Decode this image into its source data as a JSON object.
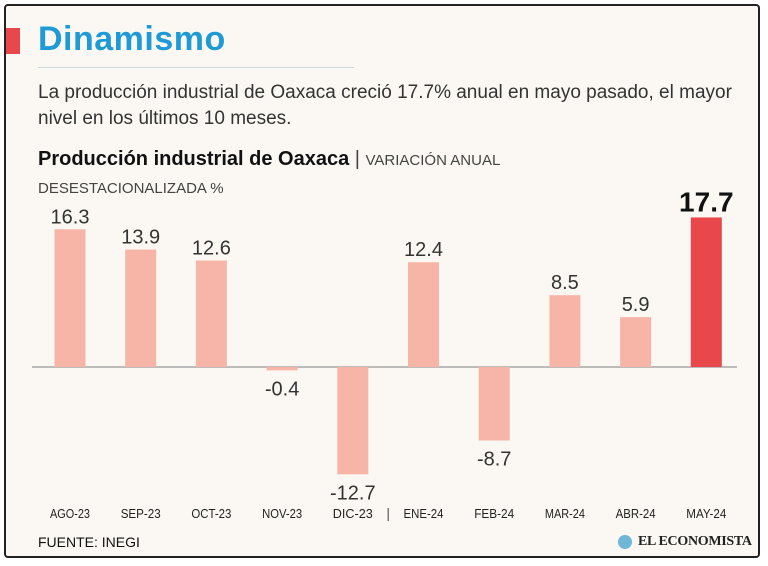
{
  "headline": "Dinamismo",
  "description": "La producción industrial de Oaxaca creció 17.7% anual en mayo pasado, el mayor nivel en los últimos 10 meses.",
  "source": "FUENTE: INEGI",
  "logo_text": "EL ECONOMISTA",
  "colors": {
    "accent": "#e8474b",
    "headline": "#1e9ad6",
    "bar": "#f7b5a8",
    "bar_highlight": "#e8474b",
    "logo": "#6fb7d6"
  },
  "chart_data": {
    "type": "bar",
    "title": "Producción industrial de Oaxaca",
    "title_separator": "|",
    "subtitle_line1": "VARIACIÓN ANUAL",
    "subtitle_line2": "DESESTACIONALIZADA %",
    "categories": [
      "AGO-23",
      "SEP-23",
      "OCT-23",
      "NOV-23",
      "DIC-23",
      "ENE-24",
      "FEB-24",
      "MAR-24",
      "ABR-24",
      "MAY-24"
    ],
    "values": [
      16.3,
      13.9,
      12.6,
      -0.4,
      -12.7,
      12.4,
      -8.7,
      8.5,
      5.9,
      17.7
    ],
    "labels": [
      "16.3",
      "13.9",
      "12.6",
      "-0.4",
      "-12.7",
      "12.4",
      "-8.7",
      "8.5",
      "5.9",
      "17.7"
    ],
    "highlight_index": 9,
    "year_separator": "|",
    "ylim": [
      -12.7,
      17.7
    ],
    "xlabel": "",
    "ylabel": ""
  }
}
